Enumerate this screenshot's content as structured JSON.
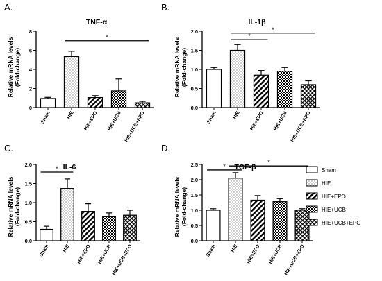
{
  "colors": {
    "ink": "#000000",
    "background": "#ffffff",
    "fill": "#ffffff"
  },
  "legend": {
    "placement": "right",
    "entries": [
      {
        "label": "Sham",
        "pattern": "plain"
      },
      {
        "label": "HIE",
        "pattern": "dots"
      },
      {
        "label": "HIE+EPO",
        "pattern": "diagonal"
      },
      {
        "label": "HIE+UCB",
        "pattern": "checker"
      },
      {
        "label": "HIE+UCB+EPO",
        "pattern": "crosshatch"
      }
    ]
  },
  "chart_data": [
    {
      "type": "bar",
      "panel": "A.",
      "title": "TNF-α",
      "ylabel": "Relative mRNA levels (Fold-change)",
      "ylabel_lines": [
        "Relative mRNA levels",
        "(Fold-change)"
      ],
      "categories": [
        "Sham",
        "HIE",
        "HIE+EPO",
        "HIE+UCB",
        "HIE+UCB+EPO"
      ],
      "values": [
        0.95,
        5.35,
        1.05,
        1.75,
        0.5
      ],
      "errors": [
        0.12,
        0.55,
        0.2,
        1.25,
        0.15
      ],
      "ylim": [
        0,
        8
      ],
      "yticks": [
        "0",
        "2",
        "4",
        "6",
        "8"
      ],
      "significance": [
        {
          "from": 1,
          "to": 4,
          "y": 7.0,
          "label": "*"
        }
      ]
    },
    {
      "type": "bar",
      "panel": "B.",
      "title": "IL-1β",
      "ylabel": "Relative mRNA levels (Fold-change)",
      "ylabel_lines": [
        "Relative mRNA levels",
        "(Fold-change)"
      ],
      "categories": [
        "Sham",
        "HIE",
        "HIE+EPO",
        "HIE+UCB",
        "HIE+UCB+EPO"
      ],
      "values": [
        1.0,
        1.5,
        0.85,
        0.95,
        0.6
      ],
      "errors": [
        0.05,
        0.15,
        0.12,
        0.1,
        0.1
      ],
      "ylim": [
        0,
        2.0
      ],
      "yticks": [
        "0.0",
        "0.5",
        "1.0",
        "1.5",
        "2.0"
      ],
      "significance": [
        {
          "from": 1,
          "to": 2,
          "y": 1.78,
          "label": "*"
        },
        {
          "from": 1,
          "to": 4,
          "y": 1.95,
          "label": "*"
        }
      ]
    },
    {
      "type": "bar",
      "panel": "C.",
      "title": "IL-6",
      "ylabel": "Relative mRNA levels (Fold-change)",
      "ylabel_lines": [
        "Relative mRNA levels",
        "(Fold-change)"
      ],
      "categories": [
        "Sham",
        "HIE",
        "HIE+EPO",
        "HIE+UCB",
        "HIE+UCB+EPO"
      ],
      "values": [
        0.3,
        1.37,
        0.77,
        0.63,
        0.67
      ],
      "errors": [
        0.08,
        0.25,
        0.2,
        0.1,
        0.13
      ],
      "ylim": [
        0,
        2.0
      ],
      "yticks": [
        "0.0",
        "0.5",
        "1.0",
        "1.5",
        "2.0"
      ],
      "significance": [
        {
          "from": 0,
          "to": 1,
          "y": 1.8,
          "label": "*"
        }
      ]
    },
    {
      "type": "bar",
      "panel": "D.",
      "title": "TGF-β",
      "ylabel": "Relative mRNA levels (Fold-change)",
      "ylabel_lines": [
        "Relative mRNA levels",
        "(Fold-change)"
      ],
      "categories": [
        "Sham",
        "HIE",
        "HIE+EPO",
        "HIE+UCB",
        "HIE+UCB+EPO"
      ],
      "values": [
        1.0,
        2.05,
        1.33,
        1.28,
        1.0
      ],
      "errors": [
        0.05,
        0.18,
        0.15,
        0.1,
        0.05
      ],
      "ylim": [
        0,
        2.5
      ],
      "yticks": [
        "0.0",
        "0.5",
        "1.0",
        "1.5",
        "2.0",
        "2.5"
      ],
      "significance": [
        {
          "from": 0,
          "to": 1,
          "y": 2.32,
          "label": "*"
        },
        {
          "from": 1,
          "to": 4,
          "y": 2.45,
          "label": "*"
        }
      ]
    }
  ]
}
